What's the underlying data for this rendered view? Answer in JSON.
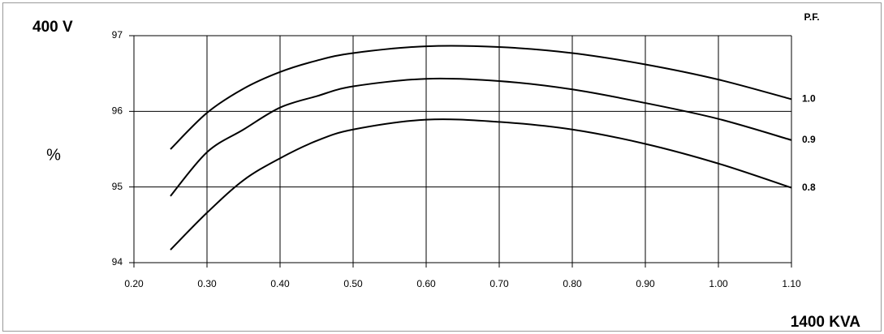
{
  "chart_data": {
    "type": "line",
    "title": "400 V",
    "y_label": "%",
    "x_label": "1400 KVA",
    "legend_title": "P.F.",
    "x": [
      0.25,
      0.3,
      0.35,
      0.4,
      0.45,
      0.5,
      0.6,
      0.7,
      0.8,
      0.9,
      1.0,
      1.1
    ],
    "series": [
      {
        "name": "1.0",
        "color": "#000000",
        "values": [
          95.5,
          95.98,
          96.3,
          96.52,
          96.67,
          96.77,
          96.86,
          96.85,
          96.77,
          96.62,
          96.42,
          96.16
        ]
      },
      {
        "name": "0.9",
        "color": "#000000",
        "values": [
          94.88,
          95.46,
          95.76,
          96.05,
          96.2,
          96.33,
          96.43,
          96.4,
          96.29,
          96.11,
          95.9,
          95.62
        ]
      },
      {
        "name": "0.8",
        "color": "#000000",
        "values": [
          94.17,
          94.66,
          95.09,
          95.38,
          95.61,
          95.76,
          95.89,
          95.86,
          95.76,
          95.57,
          95.31,
          94.99
        ]
      }
    ],
    "xlim": [
      0.2,
      1.1
    ],
    "xticks": [
      {
        "value": 0.2,
        "label": "0.20"
      },
      {
        "value": 0.3,
        "label": "0.30"
      },
      {
        "value": 0.4,
        "label": "0.40"
      },
      {
        "value": 0.5,
        "label": "0.50"
      },
      {
        "value": 0.6,
        "label": "0.60"
      },
      {
        "value": 0.7,
        "label": "0.70"
      },
      {
        "value": 0.8,
        "label": "0.80"
      },
      {
        "value": 0.9,
        "label": "0.90"
      },
      {
        "value": 1.0,
        "label": "1.00"
      },
      {
        "value": 1.1,
        "label": "1.10"
      }
    ],
    "ylim": [
      94,
      97
    ],
    "yticks": [
      94,
      95,
      96,
      97
    ],
    "grid": true
  }
}
